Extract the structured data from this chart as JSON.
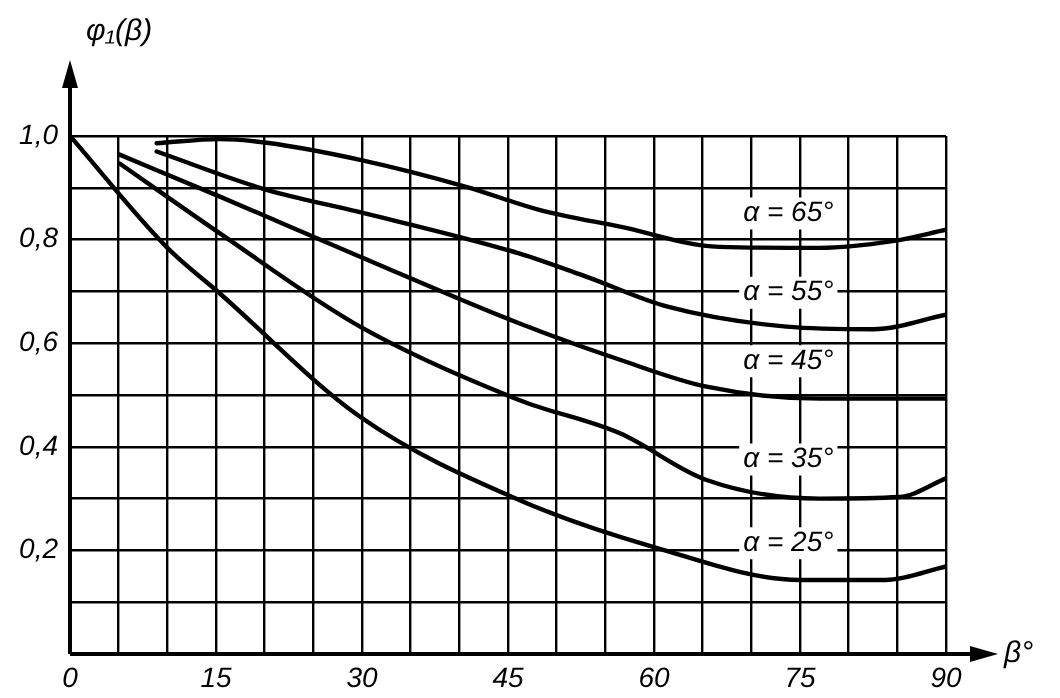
{
  "chart_data": {
    "type": "line",
    "xlabel": "β°",
    "ylabel": "φ₁(β)",
    "xlim": [
      0,
      90
    ],
    "ylim": [
      0,
      1
    ],
    "xticks": [
      {
        "value": 0,
        "label": "0"
      },
      {
        "value": 5,
        "label": null
      },
      {
        "value": 10,
        "label": null
      },
      15,
      {
        "value": 20,
        "label": null
      },
      {
        "value": 25,
        "label": null
      },
      30,
      {
        "value": 35,
        "label": null
      },
      {
        "value": 40,
        "label": null
      },
      45,
      {
        "value": 50,
        "label": null
      },
      {
        "value": 55,
        "label": null
      },
      60,
      {
        "value": 65,
        "label": null
      },
      {
        "value": 70,
        "label": null
      },
      75,
      {
        "value": 80,
        "label": null
      },
      {
        "value": 85,
        "label": null
      },
      90
    ],
    "yticks": [
      {
        "value": 0,
        "label": null
      },
      {
        "value": 0.1,
        "label": null
      },
      {
        "value": 0.2,
        "label": "0,2"
      },
      {
        "value": 0.3,
        "label": null
      },
      {
        "value": 0.4,
        "label": "0,4"
      },
      {
        "value": 0.5,
        "label": null
      },
      {
        "value": 0.6,
        "label": "0,6"
      },
      {
        "value": 0.7,
        "label": null
      },
      {
        "value": 0.8,
        "label": "0,8"
      },
      {
        "value": 0.9,
        "label": null
      },
      {
        "value": 1,
        "label": "1,0"
      }
    ],
    "grid": true,
    "legend": false,
    "marker": "none",
    "line_style": "solid",
    "series": [
      {
        "name": "α = 65°",
        "color": "#000000",
        "x": [
          8.9,
          15.4,
          20.2,
          29.8,
          40.7,
          48.3,
          56.5,
          66.7,
          77,
          84.5,
          90
        ],
        "values": [
          0.986,
          0.994,
          0.987,
          0.954,
          0.902,
          0.857,
          0.825,
          0.786,
          0.784,
          0.797,
          0.819
        ]
      },
      {
        "name": "α = 55°",
        "color": "#000000",
        "x": [
          8.9,
          20.2,
          29.8,
          46.2,
          53.1,
          61.3,
          73.6,
          82.5,
          90
        ],
        "values": [
          0.97,
          0.896,
          0.853,
          0.773,
          0.728,
          0.671,
          0.632,
          0.627,
          0.655
        ]
      },
      {
        "name": "α = 45°",
        "color": "#000000",
        "x": [
          5.1,
          15.4,
          29.8,
          46.2,
          56.5,
          65.4,
          77,
          90
        ],
        "values": [
          0.964,
          0.883,
          0.767,
          0.638,
          0.568,
          0.516,
          0.493,
          0.493
        ]
      },
      {
        "name": "α = 35°",
        "color": "#000000",
        "x": [
          5.1,
          15.4,
          29.8,
          46.2,
          56.5,
          65.4,
          77,
          85.2,
          90
        ],
        "values": [
          0.947,
          0.812,
          0.632,
          0.49,
          0.426,
          0.336,
          0.3,
          0.303,
          0.339
        ]
      },
      {
        "name": "α = 25°",
        "color": "#000000",
        "x": [
          0,
          9.9,
          15.4,
          29.8,
          46.2,
          59.9,
          75,
          83.8,
          90
        ],
        "values": [
          1,
          0.786,
          0.696,
          0.458,
          0.297,
          0.207,
          0.143,
          0.143,
          0.169
        ]
      }
    ]
  }
}
